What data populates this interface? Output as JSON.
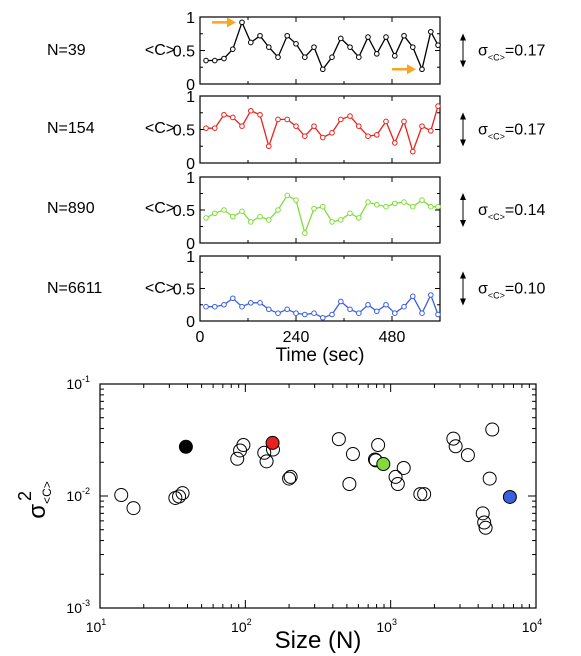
{
  "chart_data": [
    {
      "type": "line",
      "panel": "N=39",
      "label": "N=39",
      "ylabel": "<C>",
      "ylim": [
        0,
        1
      ],
      "yticks": [
        "0",
        "0.5",
        "1"
      ],
      "xlim": [
        0,
        600
      ],
      "sigma": {
        "symbol": "σ",
        "sub": "<C>",
        "value": "=0.17"
      },
      "color": "#000000",
      "x": [
        15,
        37,
        60,
        82,
        105,
        127,
        150,
        172,
        195,
        218,
        240,
        262,
        285,
        307,
        330,
        352,
        375,
        397,
        420,
        442,
        465,
        487,
        510,
        532,
        555,
        577,
        595
      ],
      "y": [
        0.35,
        0.35,
        0.38,
        0.52,
        0.92,
        0.62,
        0.72,
        0.55,
        0.4,
        0.72,
        0.6,
        0.4,
        0.55,
        0.22,
        0.4,
        0.68,
        0.55,
        0.4,
        0.7,
        0.45,
        0.7,
        0.42,
        0.72,
        0.55,
        0.22,
        0.78,
        0.58
      ],
      "annotations": [
        {
          "type": "arrow",
          "color": "#f5a623",
          "dir": "right",
          "at_x": 105,
          "at_y": 0.92
        },
        {
          "type": "arrow",
          "color": "#f5a623",
          "dir": "right",
          "at_x": 555,
          "at_y": 0.22
        }
      ]
    },
    {
      "type": "line",
      "panel": "N=154",
      "label": "N=154",
      "ylabel": "<C>",
      "ylim": [
        0,
        1
      ],
      "yticks": [
        "0",
        "0.5",
        "1"
      ],
      "xlim": [
        0,
        600
      ],
      "sigma": {
        "symbol": "σ",
        "sub": "<C>",
        "value": "=0.17"
      },
      "color": "#e8221c",
      "x": [
        15,
        37,
        60,
        82,
        105,
        127,
        150,
        172,
        195,
        218,
        240,
        262,
        285,
        307,
        330,
        352,
        375,
        397,
        420,
        442,
        465,
        487,
        510,
        532,
        555,
        577,
        595
      ],
      "y": [
        0.52,
        0.52,
        0.72,
        0.68,
        0.55,
        0.78,
        0.72,
        0.25,
        0.65,
        0.65,
        0.55,
        0.4,
        0.55,
        0.38,
        0.45,
        0.65,
        0.7,
        0.55,
        0.4,
        0.42,
        0.62,
        0.3,
        0.62,
        0.17,
        0.55,
        0.48,
        0.85
      ]
    },
    {
      "type": "line",
      "panel": "N=890",
      "label": "N=890",
      "ylabel": "<C>",
      "ylim": [
        0,
        1
      ],
      "yticks": [
        "0",
        "0.5",
        "1"
      ],
      "xlim": [
        0,
        600
      ],
      "sigma": {
        "symbol": "σ",
        "sub": "<C>",
        "value": "=0.14"
      },
      "color": "#7fdc3a",
      "x": [
        15,
        37,
        60,
        82,
        105,
        127,
        150,
        172,
        195,
        218,
        240,
        262,
        285,
        307,
        330,
        352,
        375,
        397,
        420,
        442,
        465,
        487,
        510,
        532,
        555,
        577,
        595
      ],
      "y": [
        0.38,
        0.45,
        0.5,
        0.4,
        0.48,
        0.32,
        0.4,
        0.35,
        0.5,
        0.72,
        0.65,
        0.15,
        0.52,
        0.55,
        0.32,
        0.35,
        0.45,
        0.38,
        0.62,
        0.58,
        0.55,
        0.6,
        0.62,
        0.55,
        0.65,
        0.55,
        0.55
      ]
    },
    {
      "type": "line",
      "panel": "N=6611",
      "label": "N=6611",
      "ylabel": "<C>",
      "ylim": [
        0,
        1
      ],
      "yticks": [
        "0",
        "0.5",
        "1"
      ],
      "xlim": [
        0,
        600
      ],
      "xticks": [
        0,
        240,
        480
      ],
      "xlabel": "Time (sec)",
      "sigma": {
        "symbol": "σ",
        "sub": "<C>",
        "value": "=0.10"
      },
      "color": "#3b5fe0",
      "x": [
        15,
        37,
        60,
        82,
        105,
        127,
        150,
        172,
        195,
        218,
        240,
        262,
        285,
        307,
        330,
        352,
        375,
        397,
        420,
        442,
        465,
        487,
        510,
        532,
        555,
        577,
        595
      ],
      "y": [
        0.22,
        0.22,
        0.25,
        0.35,
        0.22,
        0.28,
        0.28,
        0.18,
        0.12,
        0.18,
        0.12,
        0.1,
        0.12,
        0.05,
        0.1,
        0.3,
        0.18,
        0.12,
        0.25,
        0.15,
        0.25,
        0.12,
        0.22,
        0.38,
        0.12,
        0.4,
        0.1
      ]
    },
    {
      "type": "scatter",
      "xlabel": "Size (N)",
      "ylabel": {
        "base": "σ",
        "sup": "2",
        "sub": "<C>"
      },
      "log_x": true,
      "log_y": true,
      "xlim": [
        10,
        10000
      ],
      "ylim": [
        0.001,
        0.1
      ],
      "xticks": [
        {
          "base": "10",
          "exp": "1"
        },
        {
          "base": "10",
          "exp": "2"
        },
        {
          "base": "10",
          "exp": "3"
        },
        {
          "base": "10",
          "exp": "4"
        }
      ],
      "yticks": [
        {
          "base": "10",
          "exp": "-3"
        },
        {
          "base": "10",
          "exp": "-2"
        },
        {
          "base": "10",
          "exp": "-1"
        }
      ],
      "open_points": [
        [
          14,
          0.0102
        ],
        [
          17,
          0.0078
        ],
        [
          33,
          0.0096
        ],
        [
          35,
          0.0099
        ],
        [
          37,
          0.0106
        ],
        [
          88,
          0.0215
        ],
        [
          92,
          0.0255
        ],
        [
          97,
          0.0285
        ],
        [
          135,
          0.0243
        ],
        [
          140,
          0.0204
        ],
        [
          155,
          0.026
        ],
        [
          200,
          0.0143
        ],
        [
          205,
          0.0148
        ],
        [
          440,
          0.0322
        ],
        [
          520,
          0.0128
        ],
        [
          550,
          0.0237
        ],
        [
          780,
          0.0212
        ],
        [
          790,
          0.0208
        ],
        [
          820,
          0.0285
        ],
        [
          1080,
          0.0148
        ],
        [
          1120,
          0.0128
        ],
        [
          1230,
          0.0178
        ],
        [
          1600,
          0.0104
        ],
        [
          1700,
          0.0104
        ],
        [
          2700,
          0.0325
        ],
        [
          2800,
          0.0278
        ],
        [
          3400,
          0.0232
        ],
        [
          4300,
          0.007
        ],
        [
          4400,
          0.0058
        ],
        [
          4500,
          0.0052
        ],
        [
          4800,
          0.0143
        ],
        [
          5000,
          0.0392
        ]
      ],
      "filled_points": [
        {
          "x": 39,
          "y": 0.0275,
          "color": "#000000",
          "series": "N=39"
        },
        {
          "x": 154,
          "y": 0.0298,
          "color": "#e8221c",
          "series": "N=154"
        },
        {
          "x": 890,
          "y": 0.0193,
          "color": "#7fdc3a",
          "series": "N=890"
        },
        {
          "x": 6611,
          "y": 0.0098,
          "color": "#3b5fe0",
          "series": "N=6611"
        }
      ]
    }
  ]
}
